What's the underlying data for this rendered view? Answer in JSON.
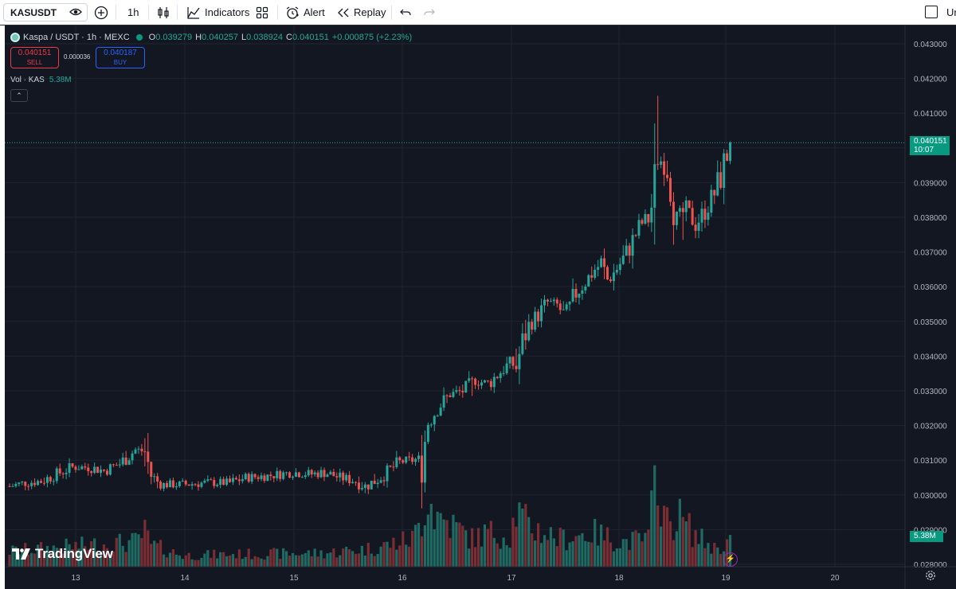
{
  "toolbar": {
    "symbol": "KASUSDT",
    "interval": "1h",
    "indicators_label": "Indicators",
    "alert_label": "Alert",
    "replay_label": "Replay",
    "right_label": "Ur"
  },
  "legend": {
    "title": "Kaspa / USDT · 1h · MEXC",
    "o_key": "O",
    "o_val": "0.039279",
    "h_key": "H",
    "h_val": "0.040257",
    "l_key": "L",
    "l_val": "0.038924",
    "c_key": "C",
    "c_val": "0.040151",
    "change": "+0.000875 (+2.23%)"
  },
  "trade": {
    "sell_price": "0.040151",
    "sell_label": "SELL",
    "spread": "0.000036",
    "buy_price": "0.040187",
    "buy_label": "BUY"
  },
  "volume_legend": {
    "label": "Vol · KAS",
    "value": "5.38M"
  },
  "collapse_glyph": "⌃",
  "price_badge": {
    "price": "0.040151",
    "countdown": "10:07"
  },
  "volume_badge": "5.38M",
  "watermark": "TradingView",
  "colors": {
    "up": "#26a69a",
    "down": "#ef5350",
    "background": "#131722",
    "grid": "#1f2430"
  },
  "icons": [
    "eye-icon",
    "plus-circle-icon",
    "candles-icon",
    "indicators-icon",
    "grid-icon",
    "alarm-icon",
    "replay-icon",
    "undo-icon",
    "redo-icon",
    "bolt-icon",
    "gear-icon"
  ],
  "chart_data": {
    "type": "candlestick",
    "price_axis": {
      "min": 0.0278,
      "max": 0.0434,
      "ticks": [
        "0.043000",
        "0.042000",
        "0.041000",
        "0.040000",
        "0.039000",
        "0.038000",
        "0.037000",
        "0.036000",
        "0.035000",
        "0.034000",
        "0.033000",
        "0.032000",
        "0.031000",
        "0.030000",
        "0.029000",
        "0.028000"
      ]
    },
    "time_axis": {
      "ticks": [
        "13",
        "14",
        "15",
        "16",
        "17",
        "18",
        "19",
        "20"
      ]
    },
    "last_price": 0.040151,
    "anchors": [
      [
        0,
        0.03025
      ],
      [
        5,
        0.03035
      ],
      [
        10,
        0.0304
      ],
      [
        15,
        0.0306
      ],
      [
        20,
        0.0308
      ],
      [
        25,
        0.0308
      ],
      [
        30,
        0.0307
      ],
      [
        35,
        0.0309
      ],
      [
        40,
        0.0313
      ],
      [
        43,
        0.03125
      ],
      [
        45,
        0.03055
      ],
      [
        48,
        0.0303
      ],
      [
        55,
        0.0303
      ],
      [
        62,
        0.03035
      ],
      [
        70,
        0.03035
      ],
      [
        75,
        0.0305
      ],
      [
        82,
        0.03055
      ],
      [
        90,
        0.03065
      ],
      [
        96,
        0.0306
      ],
      [
        100,
        0.03065
      ],
      [
        105,
        0.0305
      ],
      [
        110,
        0.0304
      ],
      [
        113,
        0.03025
      ],
      [
        116,
        0.0304
      ],
      [
        120,
        0.03065
      ],
      [
        124,
        0.03095
      ],
      [
        128,
        0.031
      ],
      [
        131,
        0.03105
      ],
      [
        133,
        0.0321
      ],
      [
        136,
        0.0325
      ],
      [
        140,
        0.0329
      ],
      [
        144,
        0.033
      ],
      [
        148,
        0.0333
      ],
      [
        152,
        0.0332
      ],
      [
        156,
        0.03355
      ],
      [
        159,
        0.0338
      ],
      [
        161,
        0.0337
      ],
      [
        163,
        0.0344
      ],
      [
        165,
        0.0349
      ],
      [
        168,
        0.0352
      ],
      [
        171,
        0.03555
      ],
      [
        174,
        0.03545
      ],
      [
        177,
        0.0351
      ],
      [
        180,
        0.0358
      ],
      [
        183,
        0.03615
      ],
      [
        186,
        0.0365
      ],
      [
        188,
        0.03665
      ],
      [
        190,
        0.0362
      ],
      [
        192,
        0.0364
      ],
      [
        195,
        0.0368
      ],
      [
        198,
        0.0373
      ],
      [
        200,
        0.03775
      ],
      [
        203,
        0.038
      ],
      [
        205,
        0.0386
      ],
      [
        206,
        0.0396
      ],
      [
        208,
        0.03965
      ],
      [
        210,
        0.03915
      ],
      [
        212,
        0.038
      ],
      [
        215,
        0.0382
      ],
      [
        218,
        0.0378
      ],
      [
        221,
        0.0382
      ],
      [
        224,
        0.0387
      ],
      [
        226,
        0.0392
      ],
      [
        229,
        0.04015
      ]
    ],
    "wicks": [
      [
        206,
        0.0415,
        null
      ],
      [
        214,
        null,
        0.03735
      ],
      [
        188,
        0.0369,
        null
      ],
      [
        147,
        null,
        0.03285
      ]
    ],
    "volume_series": [
      [
        0,
        0.25
      ],
      [
        40,
        0.4
      ],
      [
        43,
        0.55
      ],
      [
        45,
        0.35
      ],
      [
        55,
        0.18
      ],
      [
        70,
        0.2
      ],
      [
        100,
        0.22
      ],
      [
        116,
        0.3
      ],
      [
        128,
        0.45
      ],
      [
        131,
        0.75
      ],
      [
        133,
        1.2
      ],
      [
        135,
        0.85
      ],
      [
        140,
        0.7
      ],
      [
        147,
        0.45
      ],
      [
        152,
        0.55
      ],
      [
        159,
        0.5
      ],
      [
        161,
        0.9
      ],
      [
        165,
        0.65
      ],
      [
        175,
        0.45
      ],
      [
        185,
        0.55
      ],
      [
        195,
        0.4
      ],
      [
        203,
        0.45
      ],
      [
        206,
        1.75
      ],
      [
        207,
        1.05
      ],
      [
        209,
        0.7
      ],
      [
        213,
        0.8
      ],
      [
        218,
        0.5
      ],
      [
        224,
        0.3
      ],
      [
        229,
        0.4
      ]
    ]
  }
}
